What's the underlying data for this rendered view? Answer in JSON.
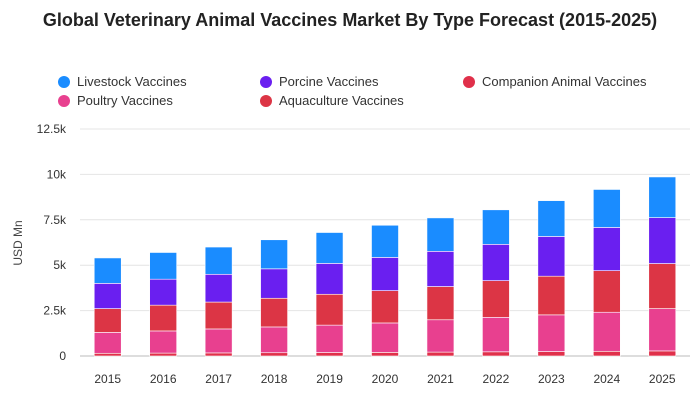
{
  "chart_data": {
    "type": "bar",
    "stacked": true,
    "title": "Global Veterinary Animal Vaccines Market By Type Forecast (2015-2025)",
    "xlabel": "",
    "ylabel": "USD Mn",
    "ylim": [
      0,
      12500
    ],
    "yticks": [
      0,
      2500,
      5000,
      7500,
      10000,
      12500
    ],
    "ytick_labels": [
      "0",
      "2.5k",
      "5k",
      "7.5k",
      "10k",
      "12.5k"
    ],
    "grid": true,
    "legend_position": "top-left",
    "categories": [
      "2015",
      "2016",
      "2017",
      "2018",
      "2019",
      "2020",
      "2021",
      "2022",
      "2023",
      "2024",
      "2025"
    ],
    "series": [
      {
        "name": "Companion Animal Vaccines",
        "color": "#e0304a",
        "values": [
          150,
          160,
          170,
          180,
          190,
          200,
          215,
          230,
          245,
          260,
          280
        ]
      },
      {
        "name": "Poultry Vaccines",
        "color": "#e8408f",
        "values": [
          1150,
          1220,
          1320,
          1420,
          1510,
          1620,
          1780,
          1900,
          2020,
          2150,
          2330
        ]
      },
      {
        "name": "Aquaculture Vaccines",
        "color": "#dc3545",
        "values": [
          1310,
          1420,
          1480,
          1580,
          1700,
          1780,
          1830,
          2020,
          2130,
          2290,
          2480
        ]
      },
      {
        "name": "Porcine Vaccines",
        "color": "#6a1ff0",
        "values": [
          1390,
          1430,
          1530,
          1620,
          1700,
          1830,
          1940,
          2000,
          2190,
          2380,
          2530
        ]
      },
      {
        "name": "Livestock Vaccines",
        "color": "#1a8cff",
        "values": [
          1400,
          1470,
          1500,
          1600,
          1700,
          1770,
          1840,
          1900,
          1970,
          2090,
          2240
        ]
      }
    ],
    "legend": [
      {
        "label": "Livestock Vaccines",
        "color": "#1a8cff"
      },
      {
        "label": "Porcine Vaccines",
        "color": "#6a1ff0"
      },
      {
        "label": "Companion Animal Vaccines",
        "color": "#e0304a"
      },
      {
        "label": "Poultry Vaccines",
        "color": "#e8408f"
      },
      {
        "label": "Aquaculture Vaccines",
        "color": "#dc3545"
      }
    ]
  }
}
